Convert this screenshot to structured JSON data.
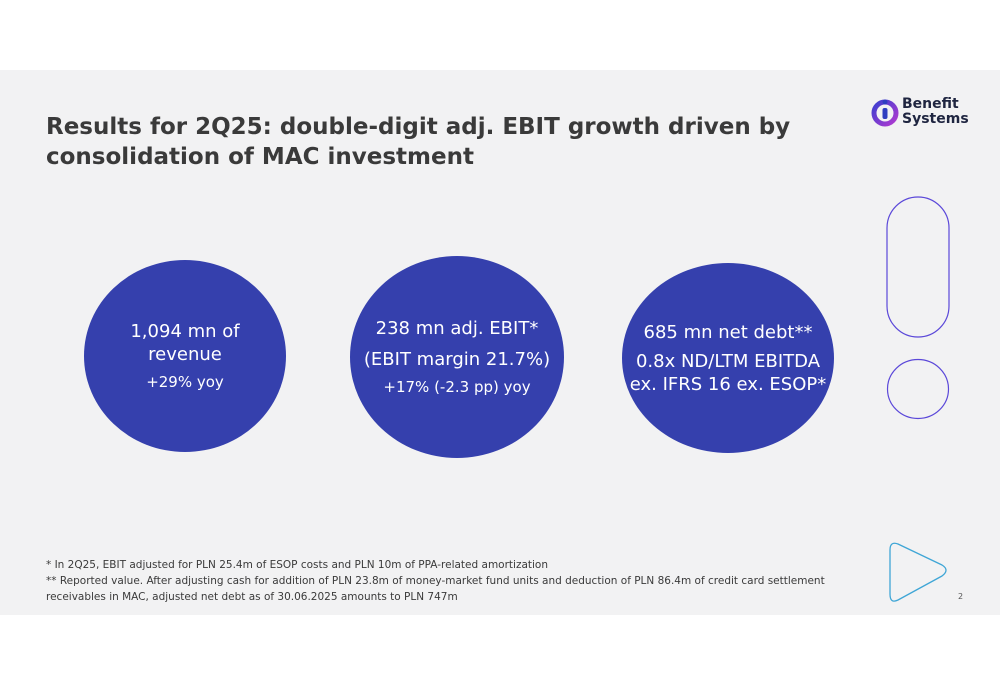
{
  "title": {
    "line1": "Results for 2Q25: double-digit adj. EBIT growth driven by",
    "line2": "consolidation of MAC investment"
  },
  "logo": {
    "line1": "Benefit",
    "line2": "Systems"
  },
  "kpis": [
    {
      "line1": "1,094 mn of",
      "line2": "revenue",
      "sub": "+29% yoy"
    },
    {
      "line1": "238 mn adj. EBIT*",
      "line2": "(EBIT margin 21.7%)",
      "sub": "+17% (-2.3 pp) yoy"
    },
    {
      "line1": "685 mn net debt**",
      "line2": "0.8x ND/LTM EBITDA",
      "line3": "ex. IFRS 16 ex. ESOP*"
    }
  ],
  "footnotes": {
    "note1": "* In 2Q25, EBIT adjusted for PLN 25.4m of ESOP costs and PLN 10m of PPA-related amortization",
    "note2": "** Reported value. After adjusting cash for addition of PLN 23.8m of money-market fund units and deduction of PLN 86.4m of credit card settlement receivables in MAC, adjusted net debt as of 30.06.2025 amounts to PLN 747m"
  },
  "page_number": "2",
  "colors": {
    "circle": "#3540ad",
    "slide_background": "#f2f2f3",
    "title_text": "#3a3a3a",
    "deco_purple": "#5b48d9",
    "deco_cyan": "#3fa6d6"
  },
  "icons": [
    "benefit-systems-logo-icon",
    "rounded-pill-outline-icon",
    "circle-outline-icon",
    "play-triangle-outline-icon"
  ]
}
